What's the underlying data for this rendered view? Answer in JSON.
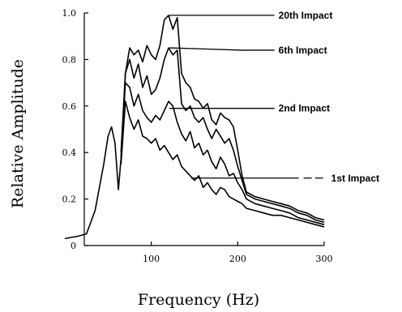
{
  "chart_data": {
    "type": "line",
    "title": "",
    "xlabel": "Frequency (Hz)",
    "ylabel": "Relative Amplitude",
    "xlim": [
      0,
      300
    ],
    "ylim": [
      0,
      1.0
    ],
    "grid": false,
    "x_ticks": [
      {
        "value": 100,
        "label": "100"
      },
      {
        "value": 200,
        "label": "200"
      },
      {
        "value": 300,
        "label": "300"
      }
    ],
    "y_ticks": [
      {
        "value": 0,
        "label": "0"
      },
      {
        "value": 0.2,
        "label": "0.2"
      },
      {
        "value": 0.4,
        "label": "0.4"
      },
      {
        "value": 0.6,
        "label": "0.6"
      },
      {
        "value": 0.8,
        "label": "0.8"
      },
      {
        "value": 1.0,
        "label": "1.0"
      }
    ],
    "series": [
      {
        "name": "20th Impact",
        "points": [
          [
            0,
            0.03
          ],
          [
            15,
            0.04
          ],
          [
            25,
            0.05
          ],
          [
            35,
            0.15
          ],
          [
            45,
            0.35
          ],
          [
            50,
            0.47
          ],
          [
            54,
            0.51
          ],
          [
            58,
            0.44
          ],
          [
            62,
            0.24
          ],
          [
            66,
            0.42
          ],
          [
            70,
            0.74
          ],
          [
            75,
            0.85
          ],
          [
            80,
            0.82
          ],
          [
            85,
            0.84
          ],
          [
            90,
            0.79
          ],
          [
            95,
            0.86
          ],
          [
            100,
            0.82
          ],
          [
            105,
            0.8
          ],
          [
            110,
            0.86
          ],
          [
            115,
            0.97
          ],
          [
            120,
            0.99
          ],
          [
            125,
            0.93
          ],
          [
            130,
            0.98
          ],
          [
            135,
            0.74
          ],
          [
            140,
            0.7
          ],
          [
            145,
            0.68
          ],
          [
            150,
            0.63
          ],
          [
            155,
            0.62
          ],
          [
            160,
            0.59
          ],
          [
            165,
            0.61
          ],
          [
            170,
            0.54
          ],
          [
            175,
            0.52
          ],
          [
            180,
            0.57
          ],
          [
            185,
            0.55
          ],
          [
            190,
            0.54
          ],
          [
            195,
            0.51
          ],
          [
            200,
            0.41
          ],
          [
            205,
            0.3
          ],
          [
            210,
            0.23
          ],
          [
            220,
            0.21
          ],
          [
            230,
            0.2
          ],
          [
            240,
            0.19
          ],
          [
            250,
            0.18
          ],
          [
            260,
            0.17
          ],
          [
            270,
            0.15
          ],
          [
            280,
            0.14
          ],
          [
            290,
            0.12
          ],
          [
            300,
            0.11
          ]
        ]
      },
      {
        "name": "6th Impact",
        "points": [
          [
            65,
            0.4
          ],
          [
            70,
            0.74
          ],
          [
            75,
            0.8
          ],
          [
            80,
            0.72
          ],
          [
            85,
            0.78
          ],
          [
            90,
            0.68
          ],
          [
            95,
            0.73
          ],
          [
            100,
            0.65
          ],
          [
            105,
            0.67
          ],
          [
            110,
            0.72
          ],
          [
            115,
            0.8
          ],
          [
            120,
            0.85
          ],
          [
            125,
            0.82
          ],
          [
            130,
            0.84
          ],
          [
            135,
            0.61
          ],
          [
            140,
            0.58
          ],
          [
            145,
            0.6
          ],
          [
            150,
            0.55
          ],
          [
            155,
            0.53
          ],
          [
            160,
            0.55
          ],
          [
            165,
            0.5
          ],
          [
            170,
            0.46
          ],
          [
            175,
            0.5
          ],
          [
            180,
            0.47
          ],
          [
            185,
            0.44
          ],
          [
            190,
            0.46
          ],
          [
            195,
            0.41
          ],
          [
            200,
            0.34
          ],
          [
            205,
            0.28
          ],
          [
            210,
            0.22
          ],
          [
            220,
            0.2
          ],
          [
            230,
            0.19
          ],
          [
            240,
            0.18
          ],
          [
            250,
            0.17
          ],
          [
            260,
            0.16
          ],
          [
            270,
            0.14
          ],
          [
            280,
            0.13
          ],
          [
            290,
            0.11
          ],
          [
            300,
            0.1
          ]
        ]
      },
      {
        "name": "2nd Impact",
        "points": [
          [
            65,
            0.38
          ],
          [
            70,
            0.7
          ],
          [
            75,
            0.68
          ],
          [
            80,
            0.6
          ],
          [
            85,
            0.65
          ],
          [
            90,
            0.58
          ],
          [
            95,
            0.55
          ],
          [
            100,
            0.53
          ],
          [
            105,
            0.56
          ],
          [
            110,
            0.54
          ],
          [
            115,
            0.58
          ],
          [
            120,
            0.62
          ],
          [
            125,
            0.6
          ],
          [
            130,
            0.53
          ],
          [
            135,
            0.48
          ],
          [
            140,
            0.45
          ],
          [
            145,
            0.49
          ],
          [
            150,
            0.42
          ],
          [
            155,
            0.44
          ],
          [
            160,
            0.39
          ],
          [
            165,
            0.41
          ],
          [
            170,
            0.36
          ],
          [
            175,
            0.33
          ],
          [
            180,
            0.38
          ],
          [
            185,
            0.35
          ],
          [
            190,
            0.3
          ],
          [
            195,
            0.31
          ],
          [
            200,
            0.27
          ],
          [
            205,
            0.24
          ],
          [
            210,
            0.2
          ],
          [
            220,
            0.18
          ],
          [
            230,
            0.17
          ],
          [
            240,
            0.16
          ],
          [
            250,
            0.15
          ],
          [
            260,
            0.14
          ],
          [
            270,
            0.12
          ],
          [
            280,
            0.11
          ],
          [
            290,
            0.1
          ],
          [
            300,
            0.09
          ]
        ]
      },
      {
        "name": "1st Impact",
        "points": [
          [
            65,
            0.35
          ],
          [
            70,
            0.62
          ],
          [
            75,
            0.55
          ],
          [
            80,
            0.5
          ],
          [
            85,
            0.54
          ],
          [
            90,
            0.47
          ],
          [
            95,
            0.46
          ],
          [
            100,
            0.44
          ],
          [
            105,
            0.46
          ],
          [
            110,
            0.41
          ],
          [
            115,
            0.43
          ],
          [
            120,
            0.4
          ],
          [
            125,
            0.37
          ],
          [
            130,
            0.39
          ],
          [
            135,
            0.34
          ],
          [
            140,
            0.32
          ],
          [
            145,
            0.3
          ],
          [
            150,
            0.28
          ],
          [
            155,
            0.3
          ],
          [
            160,
            0.25
          ],
          [
            165,
            0.27
          ],
          [
            170,
            0.24
          ],
          [
            175,
            0.22
          ],
          [
            180,
            0.25
          ],
          [
            185,
            0.24
          ],
          [
            190,
            0.21
          ],
          [
            195,
            0.2
          ],
          [
            200,
            0.19
          ],
          [
            205,
            0.18
          ],
          [
            210,
            0.16
          ],
          [
            220,
            0.15
          ],
          [
            230,
            0.14
          ],
          [
            240,
            0.13
          ],
          [
            250,
            0.13
          ],
          [
            260,
            0.12
          ],
          [
            270,
            0.11
          ],
          [
            280,
            0.1
          ],
          [
            290,
            0.09
          ],
          [
            300,
            0.08
          ]
        ]
      }
    ],
    "annotations": [
      {
        "text": "20th Impact",
        "anchor": [
          121,
          0.99
        ],
        "label_at": [
          205,
          0.99
        ],
        "dashed_leader": false
      },
      {
        "text": "6th Impact",
        "anchor": [
          121,
          0.85
        ],
        "label_at": [
          205,
          0.84
        ],
        "dashed_leader": false
      },
      {
        "text": "2nd Impact",
        "anchor": [
          121,
          0.59
        ],
        "label_at": [
          205,
          0.59
        ],
        "dashed_leader": false
      },
      {
        "text": "1st Impact",
        "anchor": [
          146,
          0.29
        ],
        "label_at": [
          205,
          0.29
        ],
        "dashed_leader": true
      }
    ]
  }
}
